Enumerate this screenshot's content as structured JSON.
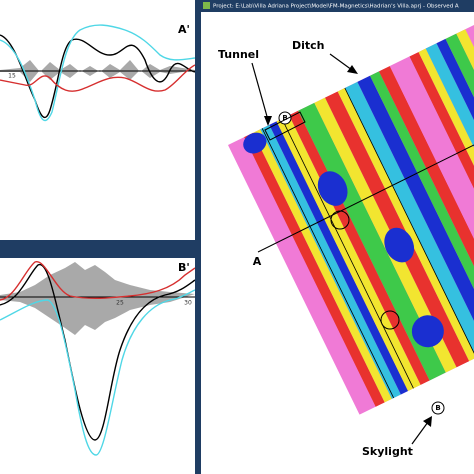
{
  "window": {
    "title": "Project: E:\\Lab\\Villa Adriana Project\\Model\\FM-Magnetics\\Hadrian's Villa.aprj - Observed A"
  },
  "profile_top": {
    "label": "A'",
    "ticks": [
      "15"
    ]
  },
  "profile_bottom": {
    "label": "B'",
    "ticks": [
      "25",
      "30"
    ]
  },
  "map": {
    "annotations": [
      "Tunnel",
      "Ditch",
      "Skylight"
    ],
    "line_labels": [
      "A",
      "B",
      "B"
    ]
  }
}
